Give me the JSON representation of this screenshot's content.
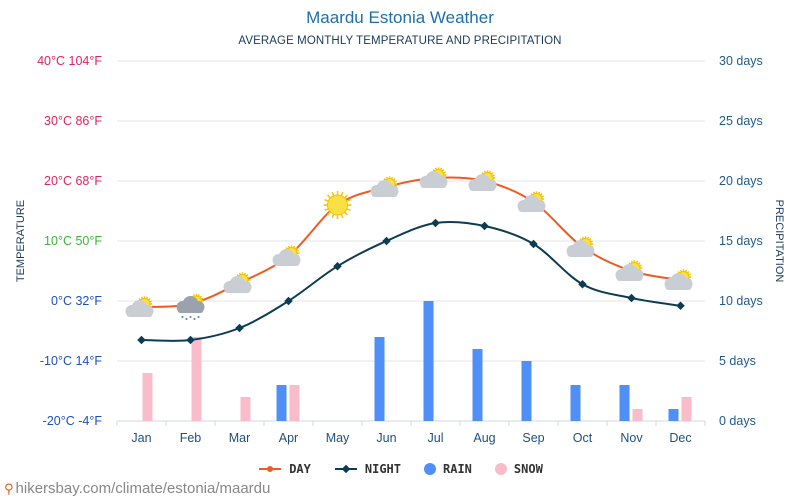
{
  "header": {
    "title": "Maardu Estonia Weather",
    "subtitle": "AVERAGE MONTHLY TEMPERATURE AND PRECIPITATION"
  },
  "footer": {
    "url": "hikersbay.com/climate/estonia/maardu"
  },
  "legend": {
    "day": "DAY",
    "night": "NIGHT",
    "rain": "RAIN",
    "snow": "SNOW"
  },
  "colors": {
    "day": "#f15a22",
    "night": "#0c3c54",
    "rain": "#4f8ff7",
    "snow": "#f8bccb"
  },
  "chart_data": {
    "type": "line+bar",
    "title": "Maardu Estonia Weather",
    "subtitle": "AVERAGE MONTHLY TEMPERATURE AND PRECIPITATION",
    "ylabel_left": "TEMPERATURE",
    "ylabel_right": "PRECIPITATION",
    "categories": [
      "Jan",
      "Feb",
      "Mar",
      "Apr",
      "May",
      "Jun",
      "Jul",
      "Aug",
      "Sep",
      "Oct",
      "Nov",
      "Dec"
    ],
    "left_ticks": [
      {
        "value": 40,
        "label": "40°C 104°F",
        "color": "#e0245e"
      },
      {
        "value": 30,
        "label": "30°C 86°F",
        "color": "#e0245e"
      },
      {
        "value": 20,
        "label": "20°C 68°F",
        "color": "#e0245e"
      },
      {
        "value": 10,
        "label": "10°C 50°F",
        "color": "#3cb33c"
      },
      {
        "value": 0,
        "label": "0°C 32°F",
        "color": "#1f4fbf"
      },
      {
        "value": -10,
        "label": "-10°C 14°F",
        "color": "#1f4fbf"
      },
      {
        "value": -20,
        "label": "-20°C -4°F",
        "color": "#1f4fbf"
      }
    ],
    "right_ticks": [
      {
        "value": 30,
        "label": "30 days"
      },
      {
        "value": 25,
        "label": "25 days"
      },
      {
        "value": 20,
        "label": "20 days"
      },
      {
        "value": 15,
        "label": "15 days"
      },
      {
        "value": 10,
        "label": "10 days"
      },
      {
        "value": 5,
        "label": "5 days"
      },
      {
        "value": 0,
        "label": "0 days"
      }
    ],
    "temp_range": [
      -20,
      40
    ],
    "precip_range": [
      0,
      30
    ],
    "series": [
      {
        "name": "DAY",
        "values": [
          -1,
          -0.5,
          3,
          7.5,
          16,
          19,
          20.5,
          20,
          16.5,
          9,
          5,
          3.5
        ]
      },
      {
        "name": "NIGHT",
        "values": [
          -6.5,
          -6.5,
          -4.5,
          0,
          5.8,
          10,
          13,
          12.5,
          9.5,
          2.8,
          0.5,
          -0.8
        ]
      },
      {
        "name": "RAIN",
        "values": [
          0,
          0,
          0,
          3,
          0,
          7,
          10,
          6,
          5,
          3,
          3,
          1
        ]
      },
      {
        "name": "SNOW",
        "values": [
          4,
          7,
          2,
          3,
          0,
          0,
          0,
          0,
          0,
          0,
          1,
          2
        ]
      }
    ],
    "weather_icons": [
      "partly-cloudy",
      "snowy-cloud",
      "partly-cloudy",
      "partly-cloudy",
      "sunny",
      "partly-cloudy",
      "partly-cloudy",
      "partly-cloudy",
      "partly-cloudy",
      "partly-cloudy",
      "partly-cloudy",
      "partly-cloudy"
    ]
  }
}
